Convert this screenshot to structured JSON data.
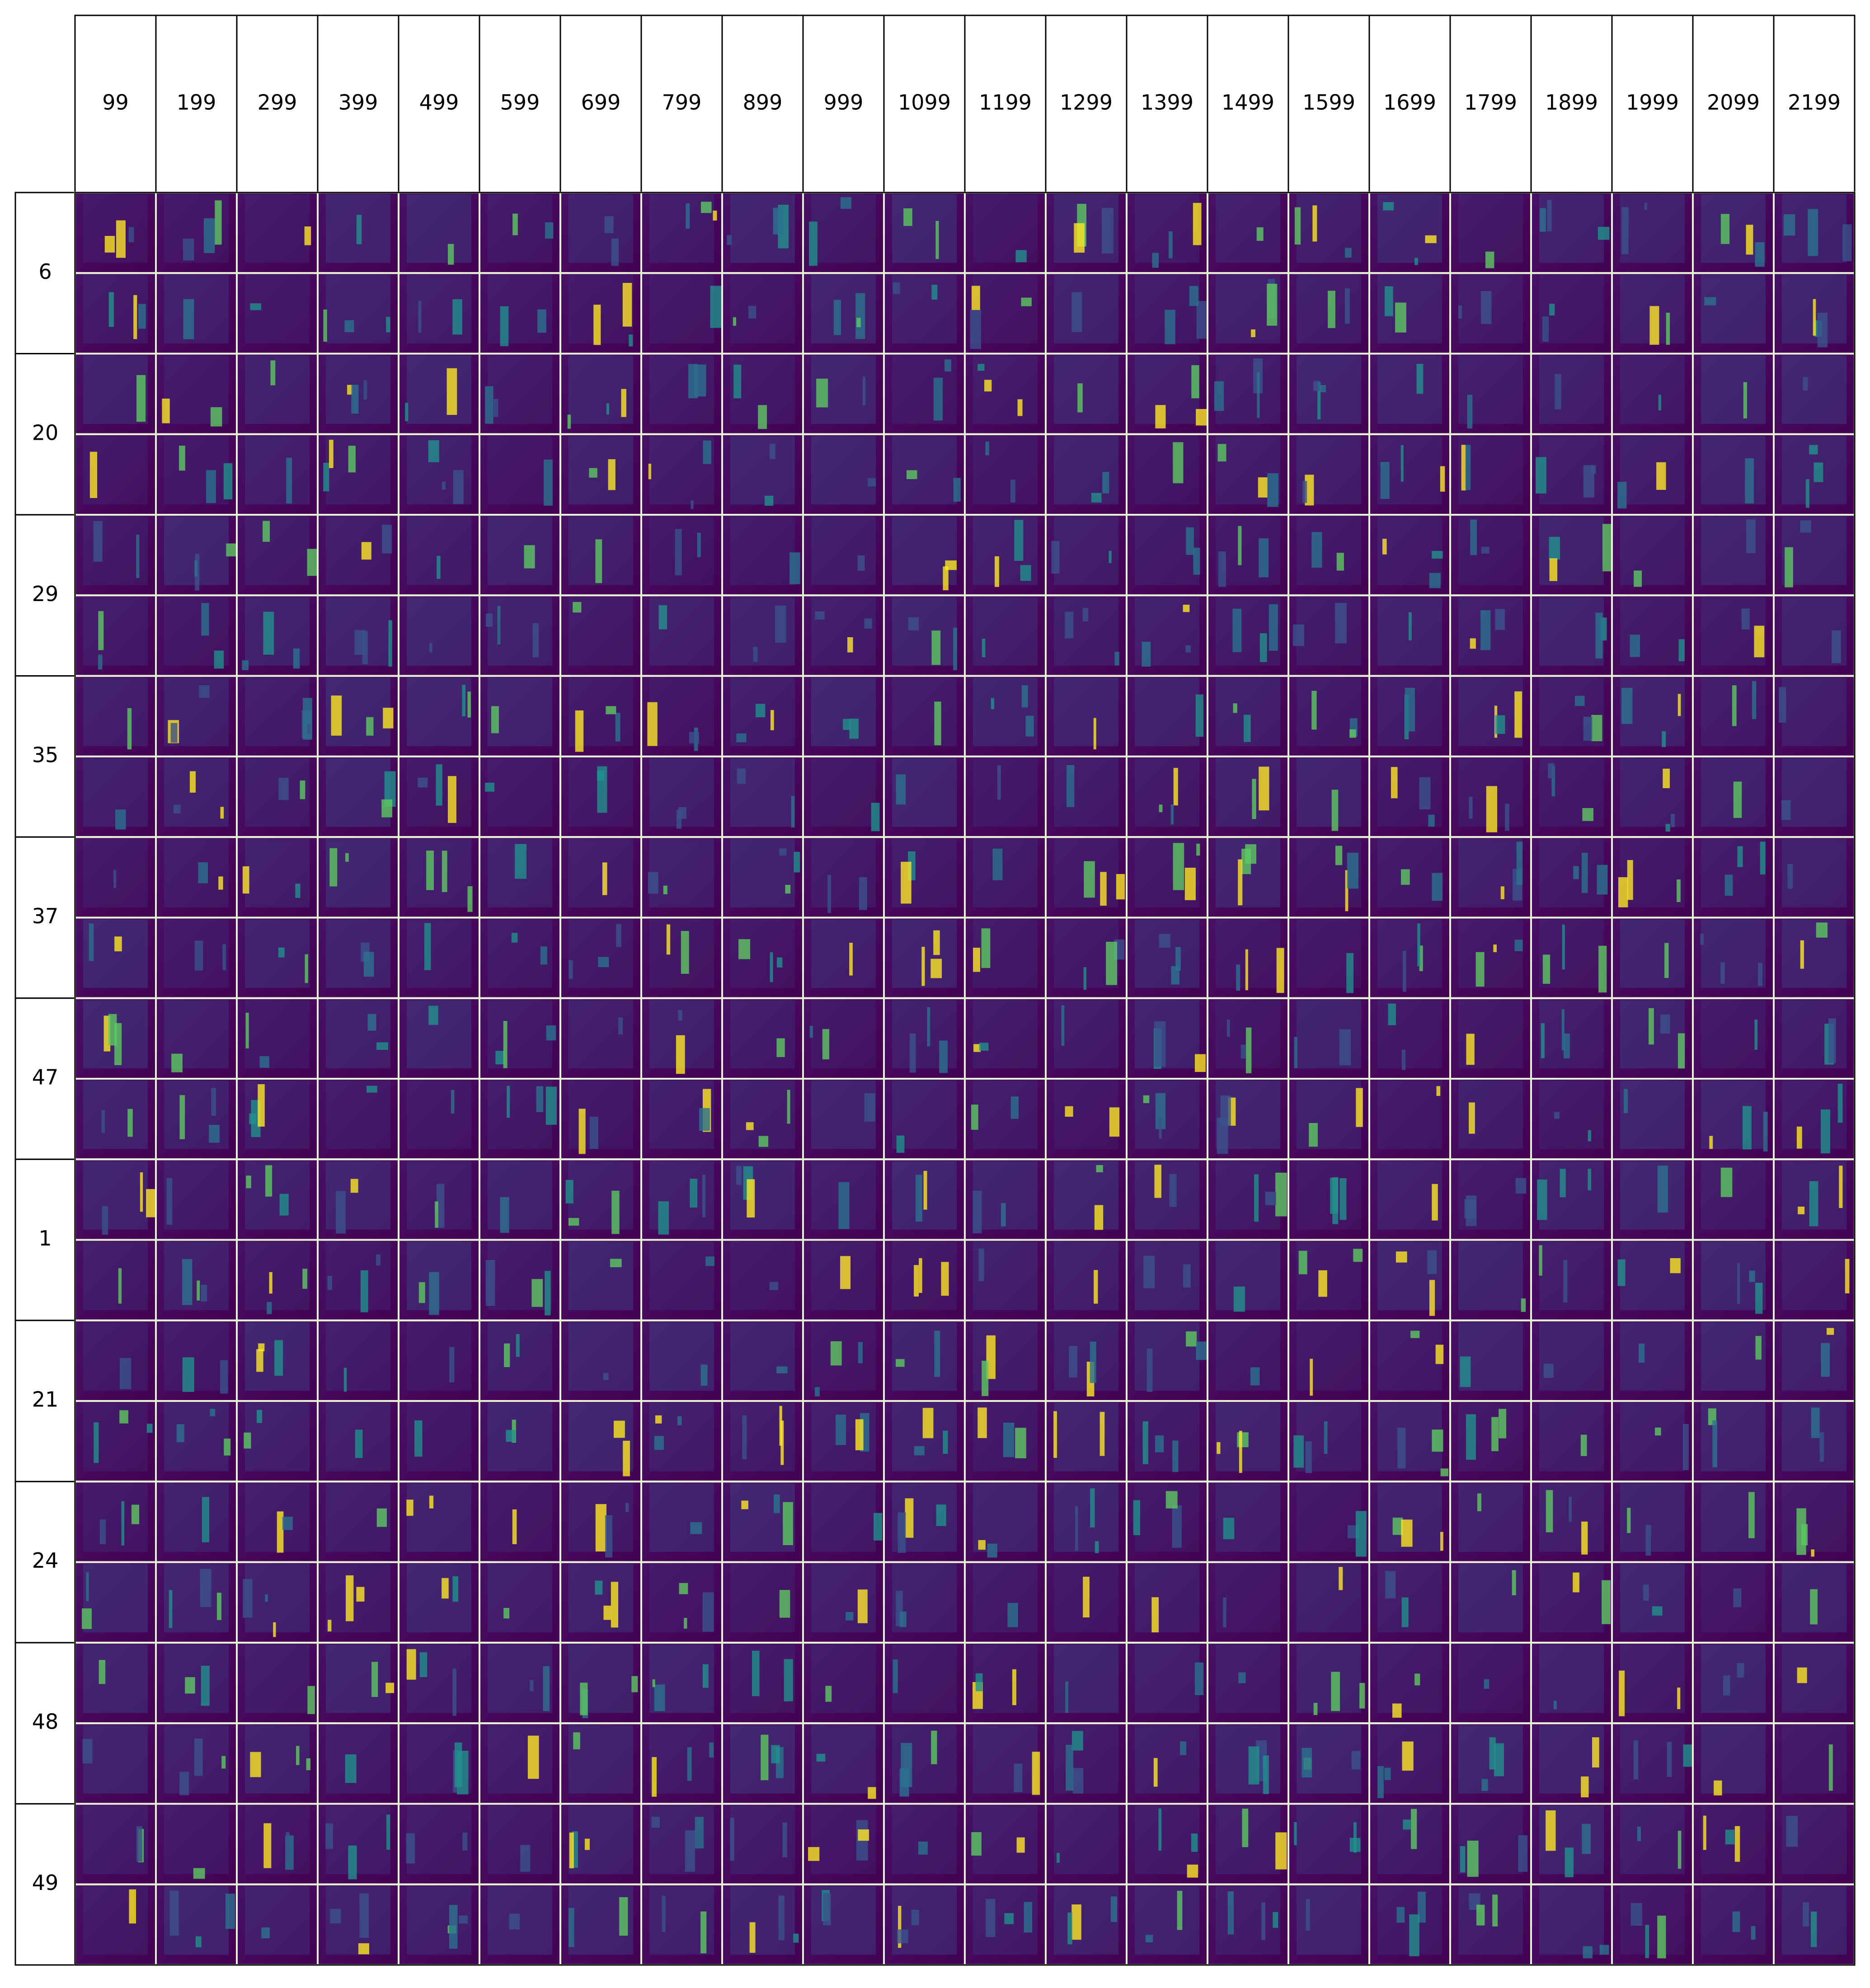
{
  "columns": [
    "99",
    "199",
    "299",
    "399",
    "499",
    "599",
    "699",
    "799",
    "899",
    "999",
    "1099",
    "1199",
    "1299",
    "1399",
    "1499",
    "1599",
    "1699",
    "1799",
    "1899",
    "1999",
    "2099",
    "2199"
  ],
  "rows": [
    "6",
    "20",
    "29",
    "35",
    "37",
    "47",
    "1",
    "21",
    "24",
    "48",
    "49"
  ]
}
